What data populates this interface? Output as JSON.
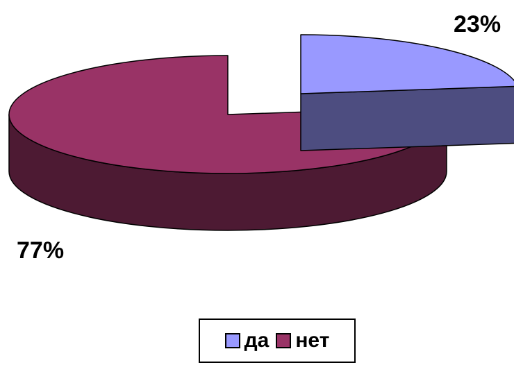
{
  "chart_data": {
    "type": "pie",
    "categories": [
      "да",
      "нет"
    ],
    "values": [
      23,
      77
    ],
    "data_labels": [
      "23%",
      "77%"
    ],
    "colors": {
      "да": {
        "top": "#9999ff",
        "side": "#4d4d80",
        "swatch": "#9999ff"
      },
      "нет": {
        "top": "#993366",
        "side": "#4d1a33",
        "swatch": "#993366"
      }
    },
    "style": "3d-exploded",
    "legend_placement": "bottom"
  }
}
